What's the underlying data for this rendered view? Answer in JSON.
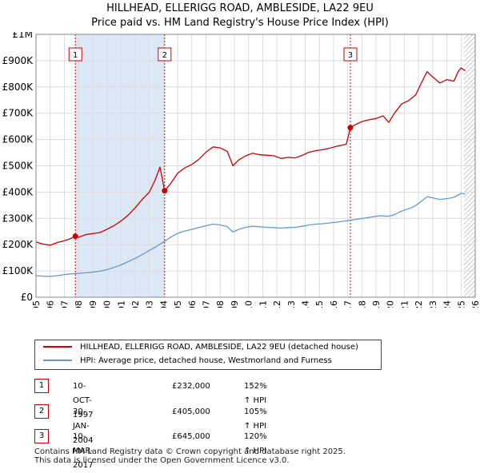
{
  "title": {
    "line1": "HILLHEAD, ELLERIGG ROAD, AMBLESIDE, LA22 9EU",
    "line2": "Price paid vs. HM Land Registry's House Price Index (HPI)"
  },
  "colors": {
    "property": "#cc0000",
    "hpi": "#6699cc",
    "grid": "#dcdcdc",
    "shade": "#dde8f6",
    "marker": "#cc0000"
  },
  "chart_data": {
    "type": "line",
    "xlim": [
      1995,
      2026
    ],
    "ylim": [
      0,
      1000000
    ],
    "yticks": [
      {
        "value": 0,
        "label": "£0"
      },
      {
        "value": 100000,
        "label": "£100K"
      },
      {
        "value": 200000,
        "label": "£200K"
      },
      {
        "value": 300000,
        "label": "£300K"
      },
      {
        "value": 400000,
        "label": "£400K"
      },
      {
        "value": 500000,
        "label": "£500K"
      },
      {
        "value": 600000,
        "label": "£600K"
      },
      {
        "value": 700000,
        "label": "£700K"
      },
      {
        "value": 800000,
        "label": "£800K"
      },
      {
        "value": 900000,
        "label": "£900K"
      },
      {
        "value": 1000000,
        "label": "£1M"
      }
    ],
    "xticks": [
      "1995",
      "1996",
      "1997",
      "1998",
      "1999",
      "2000",
      "2001",
      "2002",
      "2003",
      "2004",
      "2005",
      "2006",
      "2007",
      "2008",
      "2009",
      "2010",
      "2011",
      "2012",
      "2013",
      "2014",
      "2015",
      "2016",
      "2017",
      "2018",
      "2019",
      "2020",
      "2021",
      "2022",
      "2023",
      "2024",
      "2025",
      "2026"
    ],
    "series": [
      {
        "name": "HILLHEAD, ELLERIGG ROAD, AMBLESIDE, LA22 9EU (detached house)",
        "color": "#cc0000",
        "points": [
          [
            1995.0,
            210000
          ],
          [
            1995.5,
            202000
          ],
          [
            1996.0,
            198000
          ],
          [
            1996.5,
            208000
          ],
          [
            1997.0,
            215000
          ],
          [
            1997.4,
            222000
          ],
          [
            1997.78,
            232000
          ],
          [
            1998.0,
            228000
          ],
          [
            1998.5,
            238000
          ],
          [
            1999.0,
            242000
          ],
          [
            1999.5,
            246000
          ],
          [
            2000.0,
            258000
          ],
          [
            2000.5,
            272000
          ],
          [
            2001.0,
            290000
          ],
          [
            2001.5,
            312000
          ],
          [
            2002.0,
            340000
          ],
          [
            2002.5,
            372000
          ],
          [
            2003.0,
            400000
          ],
          [
            2003.4,
            445000
          ],
          [
            2003.75,
            495000
          ],
          [
            2004.08,
            405000
          ],
          [
            2004.5,
            432000
          ],
          [
            2005.0,
            472000
          ],
          [
            2005.5,
            492000
          ],
          [
            2006.0,
            505000
          ],
          [
            2006.5,
            525000
          ],
          [
            2007.0,
            552000
          ],
          [
            2007.5,
            572000
          ],
          [
            2008.0,
            568000
          ],
          [
            2008.5,
            555000
          ],
          [
            2008.9,
            500000
          ],
          [
            2009.3,
            522000
          ],
          [
            2009.8,
            538000
          ],
          [
            2010.3,
            548000
          ],
          [
            2010.8,
            542000
          ],
          [
            2011.3,
            540000
          ],
          [
            2011.8,
            538000
          ],
          [
            2012.3,
            528000
          ],
          [
            2012.8,
            532000
          ],
          [
            2013.3,
            530000
          ],
          [
            2013.8,
            540000
          ],
          [
            2014.3,
            552000
          ],
          [
            2014.8,
            558000
          ],
          [
            2015.3,
            562000
          ],
          [
            2015.8,
            568000
          ],
          [
            2016.3,
            575000
          ],
          [
            2016.9,
            582000
          ],
          [
            2017.19,
            645000
          ],
          [
            2017.6,
            658000
          ],
          [
            2018.0,
            668000
          ],
          [
            2018.5,
            675000
          ],
          [
            2019.0,
            680000
          ],
          [
            2019.5,
            690000
          ],
          [
            2019.9,
            665000
          ],
          [
            2020.3,
            700000
          ],
          [
            2020.8,
            735000
          ],
          [
            2021.3,
            748000
          ],
          [
            2021.8,
            770000
          ],
          [
            2022.2,
            815000
          ],
          [
            2022.6,
            858000
          ],
          [
            2023.0,
            838000
          ],
          [
            2023.5,
            815000
          ],
          [
            2024.0,
            828000
          ],
          [
            2024.5,
            822000
          ],
          [
            2024.8,
            858000
          ],
          [
            2025.0,
            872000
          ],
          [
            2025.3,
            862000
          ]
        ]
      },
      {
        "name": "HPI: Average price, detached house, Westmorland and Furness",
        "color": "#6699cc",
        "points": [
          [
            1995.0,
            82000
          ],
          [
            1995.5,
            80000
          ],
          [
            1996.0,
            79000
          ],
          [
            1996.5,
            82000
          ],
          [
            1997.0,
            86000
          ],
          [
            1997.5,
            89000
          ],
          [
            1998.0,
            91000
          ],
          [
            1998.5,
            93000
          ],
          [
            1999.0,
            95000
          ],
          [
            1999.5,
            99000
          ],
          [
            2000.0,
            105000
          ],
          [
            2000.5,
            113000
          ],
          [
            2001.0,
            123000
          ],
          [
            2001.5,
            135000
          ],
          [
            2002.0,
            148000
          ],
          [
            2002.5,
            162000
          ],
          [
            2003.0,
            178000
          ],
          [
            2003.5,
            193000
          ],
          [
            2004.0,
            210000
          ],
          [
            2004.5,
            228000
          ],
          [
            2005.0,
            243000
          ],
          [
            2005.5,
            252000
          ],
          [
            2006.0,
            258000
          ],
          [
            2006.5,
            265000
          ],
          [
            2007.0,
            272000
          ],
          [
            2007.5,
            278000
          ],
          [
            2008.0,
            275000
          ],
          [
            2008.5,
            268000
          ],
          [
            2008.9,
            248000
          ],
          [
            2009.3,
            258000
          ],
          [
            2009.8,
            266000
          ],
          [
            2010.3,
            270000
          ],
          [
            2010.8,
            268000
          ],
          [
            2011.3,
            266000
          ],
          [
            2011.8,
            265000
          ],
          [
            2012.3,
            263000
          ],
          [
            2012.8,
            265000
          ],
          [
            2013.3,
            266000
          ],
          [
            2013.8,
            270000
          ],
          [
            2014.3,
            275000
          ],
          [
            2014.8,
            278000
          ],
          [
            2015.3,
            280000
          ],
          [
            2015.8,
            283000
          ],
          [
            2016.3,
            286000
          ],
          [
            2016.8,
            290000
          ],
          [
            2017.3,
            294000
          ],
          [
            2017.8,
            298000
          ],
          [
            2018.3,
            302000
          ],
          [
            2018.8,
            306000
          ],
          [
            2019.3,
            310000
          ],
          [
            2019.8,
            308000
          ],
          [
            2020.2,
            312000
          ],
          [
            2020.7,
            325000
          ],
          [
            2021.2,
            335000
          ],
          [
            2021.7,
            345000
          ],
          [
            2022.2,
            365000
          ],
          [
            2022.6,
            382000
          ],
          [
            2023.0,
            378000
          ],
          [
            2023.5,
            372000
          ],
          [
            2024.0,
            375000
          ],
          [
            2024.5,
            380000
          ],
          [
            2025.0,
            395000
          ],
          [
            2025.3,
            392000
          ]
        ]
      }
    ],
    "sales": [
      {
        "label": "1",
        "x": 1997.78,
        "value": 232000
      },
      {
        "label": "2",
        "x": 2004.08,
        "value": 405000
      },
      {
        "label": "3",
        "x": 2017.19,
        "value": 645000
      }
    ],
    "hatch_from": 2025.2,
    "grid": true
  },
  "legend": {
    "property_label": "HILLHEAD, ELLERIGG ROAD, AMBLESIDE, LA22 9EU (detached house)",
    "hpi_label": "HPI: Average price, detached house, Westmorland and Furness"
  },
  "transactions": [
    {
      "num": "1",
      "date": "10-OCT-1997",
      "price": "£232,000",
      "hpi": "152% ↑ HPI"
    },
    {
      "num": "2",
      "date": "30-JAN-2004",
      "price": "£405,000",
      "hpi": "105% ↑ HPI"
    },
    {
      "num": "3",
      "date": "10-MAR-2017",
      "price": "£645,000",
      "hpi": "120% ↑ HPI"
    }
  ],
  "footer": {
    "line1": "Contains HM Land Registry data © Crown copyright and database right 2025.",
    "line2": "This data is licensed under the Open Government Licence v3.0."
  }
}
